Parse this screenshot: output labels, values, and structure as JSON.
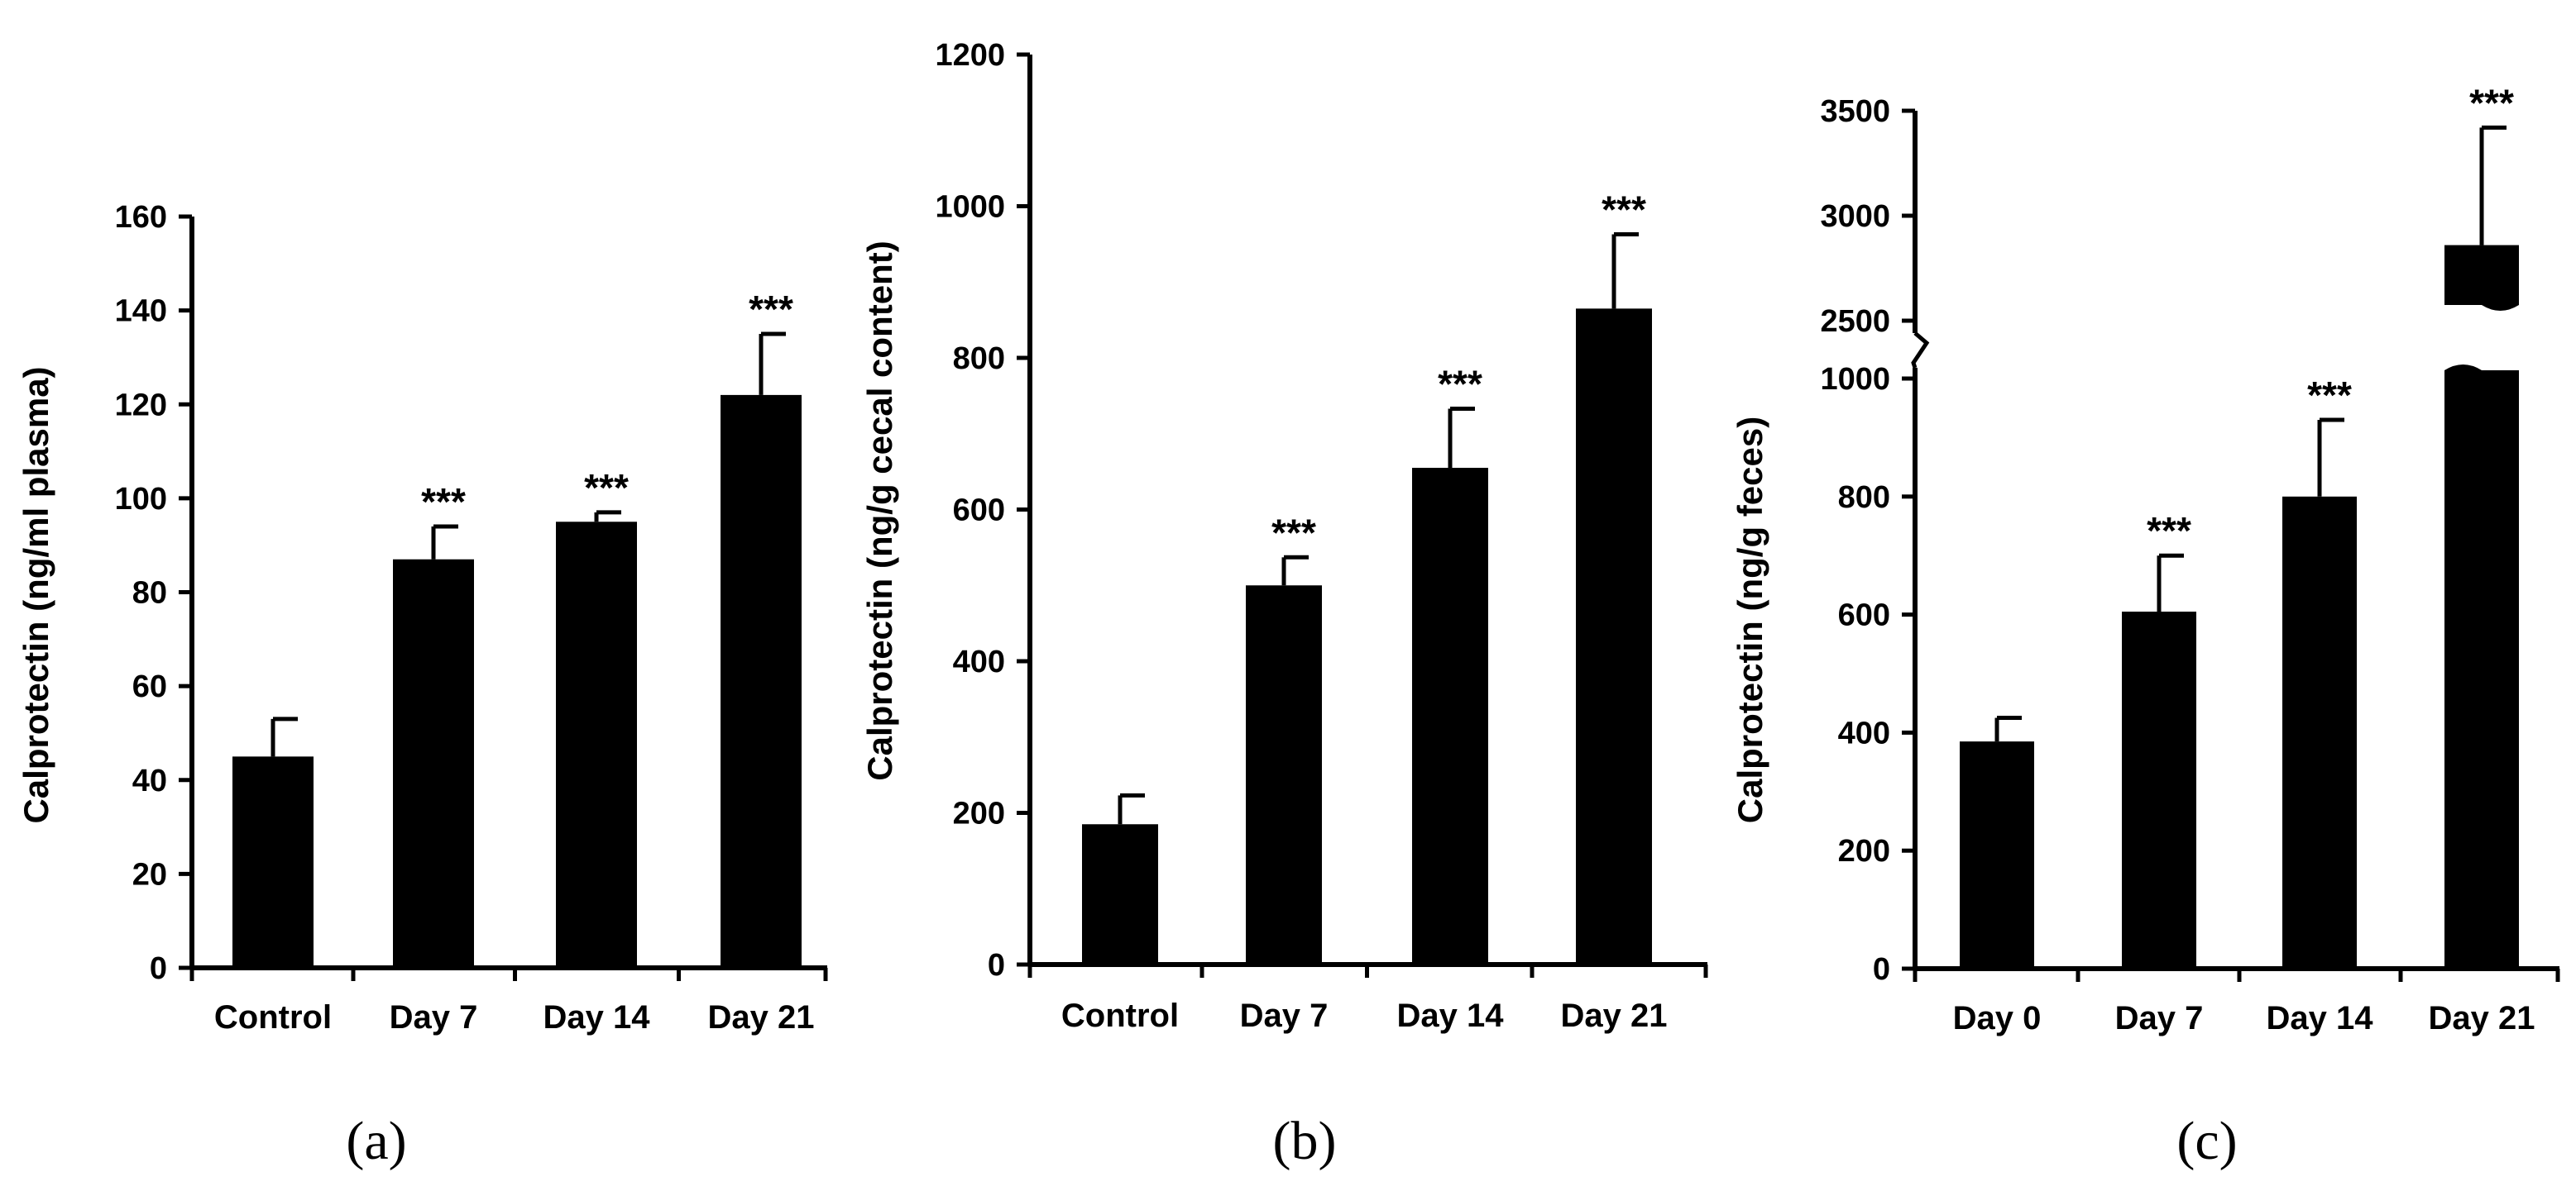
{
  "chart_data": [
    {
      "type": "bar",
      "panel_label": "(a)",
      "ylabel": "Calprotectin (ng/ml plasma)",
      "ylim": [
        0,
        160
      ],
      "yticks": [
        0,
        20,
        40,
        60,
        80,
        100,
        120,
        140,
        160
      ],
      "categories": [
        "Control",
        "Day 7",
        "Day 14",
        "Day 21"
      ],
      "values": [
        45,
        87,
        95,
        122
      ],
      "errors": [
        8,
        7,
        2,
        13
      ],
      "significance": [
        "",
        "***",
        "***",
        "***"
      ],
      "bar_color": "#000000"
    },
    {
      "type": "bar",
      "panel_label": "(b)",
      "ylabel": "Calprotectin (ng/g cecal content)",
      "ylim": [
        0,
        1200
      ],
      "yticks": [
        0,
        200,
        400,
        600,
        800,
        1000,
        1200
      ],
      "categories": [
        "Control",
        "Day 7",
        "Day 14",
        "Day 21"
      ],
      "values": [
        185,
        500,
        655,
        865
      ],
      "errors": [
        38,
        37,
        78,
        98
      ],
      "significance": [
        "",
        "***",
        "***",
        "***"
      ],
      "bar_color": "#000000"
    },
    {
      "type": "bar",
      "panel_label": "(c)",
      "ylabel": "Calprotectin (ng/g feces)",
      "axis_break": true,
      "ylim_lower": [
        0,
        1000
      ],
      "ylim_upper": [
        2500,
        3500
      ],
      "yticks_lower": [
        0,
        200,
        400,
        600,
        800,
        1000
      ],
      "yticks_upper": [
        2500,
        3000,
        3500
      ],
      "categories": [
        "Day 0",
        "Day 7",
        "Day 14",
        "Day 21"
      ],
      "values": [
        385,
        605,
        800,
        2860
      ],
      "errors": [
        40,
        95,
        130,
        560
      ],
      "significance": [
        "",
        "***",
        "***",
        "***"
      ],
      "bar_color": "#000000"
    }
  ]
}
